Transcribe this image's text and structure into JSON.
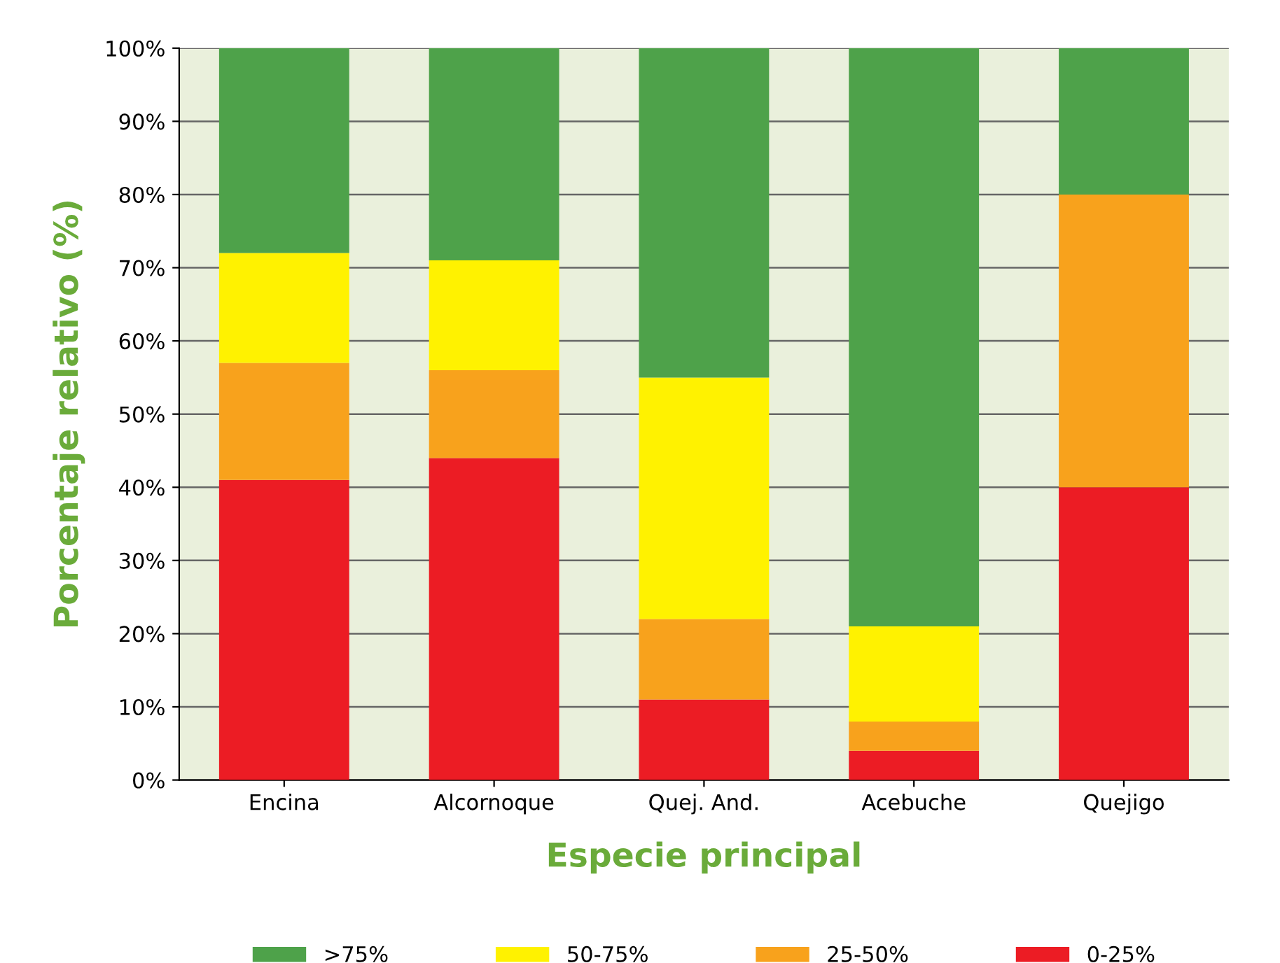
{
  "chart_data": {
    "type": "bar",
    "stacked": true,
    "xlabel": "Especie principal",
    "ylabel": "Porcentaje relativo (%)",
    "categories": [
      "Encina",
      "Alcornoque",
      "Quej. And.",
      "Acebuche",
      "Quejigo"
    ],
    "series": [
      {
        "name": "0-25%",
        "color": "#ec1c24",
        "values": [
          41,
          44,
          11,
          4,
          40
        ]
      },
      {
        "name": "25-50%",
        "color": "#f8a21c",
        "values": [
          16,
          12,
          11,
          4,
          40
        ]
      },
      {
        "name": "50-75%",
        "color": "#fff200",
        "values": [
          15,
          15,
          33,
          13,
          0
        ]
      },
      {
        "name": ">75%",
        "color": "#4ea24a",
        "values": [
          28,
          29,
          45,
          79,
          20
        ]
      }
    ],
    "ylim": [
      0,
      100
    ],
    "yticks": [
      {
        "value": 0,
        "label": "0%"
      },
      {
        "value": 10,
        "label": "10%"
      },
      {
        "value": 20,
        "label": "20%"
      },
      {
        "value": 30,
        "label": "30%"
      },
      {
        "value": 40,
        "label": "40%"
      },
      {
        "value": 50,
        "label": "50%"
      },
      {
        "value": 60,
        "label": "60%"
      },
      {
        "value": 70,
        "label": "70%"
      },
      {
        "value": 80,
        "label": "80%"
      },
      {
        "value": 90,
        "label": "90%"
      },
      {
        "value": 100,
        "label": "100%"
      }
    ],
    "grid": "y",
    "legend": "bottom"
  }
}
